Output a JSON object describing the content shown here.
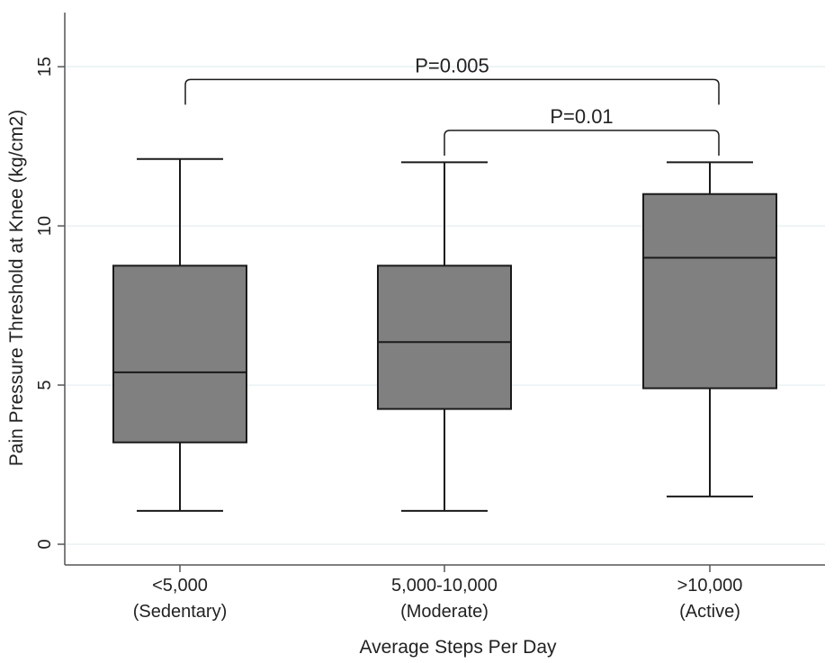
{
  "chart_data": {
    "type": "box",
    "xlabel": "Average Steps Per Day",
    "ylabel": "Pain Pressure Threshold at Knee (kg/cm2)",
    "ylim": [
      -0.65,
      16.7
    ],
    "yticks": [
      0,
      5,
      10,
      15
    ],
    "grid": true,
    "categories": [
      {
        "line1": "<5,000",
        "line2": "(Sedentary)"
      },
      {
        "line1": "5,000-10,000",
        "line2": "(Moderate)"
      },
      {
        "line1": ">10,000",
        "line2": "(Active)"
      }
    ],
    "boxes": [
      {
        "min": 1.05,
        "q1": 3.2,
        "median": 5.4,
        "q3": 8.75,
        "max": 12.1
      },
      {
        "min": 1.05,
        "q1": 4.25,
        "median": 6.35,
        "q3": 8.75,
        "max": 12.0
      },
      {
        "min": 1.5,
        "q1": 4.9,
        "median": 9.0,
        "q3": 11.0,
        "max": 12.0
      }
    ],
    "comparisons": [
      {
        "from": 0,
        "to": 2,
        "label": "P=0.005",
        "y": 14.6
      },
      {
        "from": 1,
        "to": 2,
        "label": "P=0.01",
        "y": 13.0
      }
    ],
    "colors": {
      "box": "#808080",
      "stroke": "#1a1a1a",
      "grid": "#e4eef0",
      "axis": "#555555"
    }
  }
}
